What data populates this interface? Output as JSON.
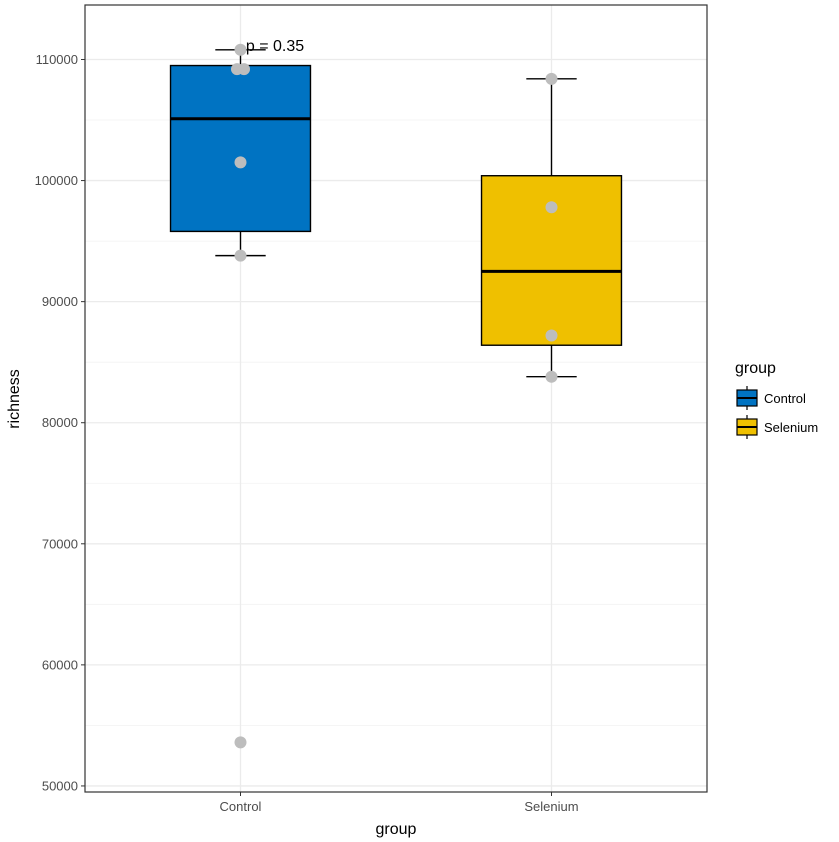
{
  "chart_data": {
    "type": "boxplot",
    "xlabel": "group",
    "ylabel": "richness",
    "ylim": [
      49500,
      114500
    ],
    "yticks": [
      50000,
      60000,
      70000,
      80000,
      90000,
      100000,
      110000
    ],
    "ytick_labels": [
      "50000",
      "60000",
      "70000",
      "80000",
      "90000",
      "100000",
      "110000"
    ],
    "categories": [
      "Control",
      "Selenium"
    ],
    "grid": true,
    "annotation": "p = 0.35",
    "legend": {
      "title": "group",
      "position": "right",
      "entries": [
        "Control",
        "Selenium"
      ]
    },
    "boxes": [
      {
        "name": "Control",
        "color": "#0073C2",
        "whisker_low": 93800,
        "q1": 95800,
        "median": 105100,
        "q3": 109500,
        "whisker_high": 110800,
        "points": [
          109200,
          109200,
          101500,
          93800,
          53600,
          110800
        ]
      },
      {
        "name": "Selenium",
        "color": "#EFC000",
        "whisker_low": 83800,
        "q1": 86400,
        "median": 92500,
        "q3": 100400,
        "whisker_high": 108400,
        "points": [
          108400,
          97800,
          87200,
          83800
        ]
      }
    ],
    "point_color": "#bdbdbd"
  }
}
